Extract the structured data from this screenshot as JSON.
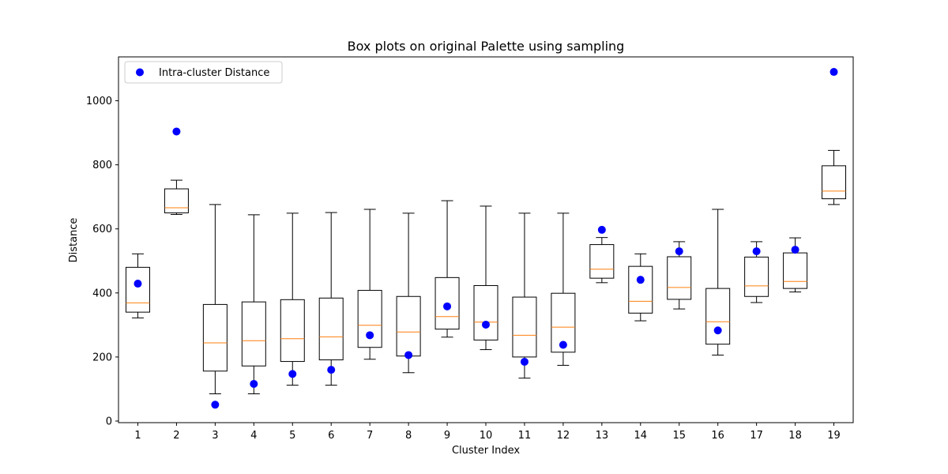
{
  "chart_data": {
    "type": "box",
    "title": "Box plots on original Palette using sampling",
    "xlabel": "Cluster Index",
    "ylabel": "Distance",
    "xlim": [
      0.5,
      19.5
    ],
    "ylim": [
      -5,
      1137
    ],
    "yticks": [
      0,
      200,
      400,
      600,
      800,
      1000
    ],
    "categories": [
      "1",
      "2",
      "3",
      "4",
      "5",
      "6",
      "7",
      "8",
      "9",
      "10",
      "11",
      "12",
      "13",
      "14",
      "15",
      "16",
      "17",
      "18",
      "19"
    ],
    "boxes": [
      {
        "whisker_low": 322,
        "q1": 340,
        "median": 369,
        "q3": 480,
        "whisker_high": 522
      },
      {
        "whisker_low": 645,
        "q1": 650,
        "median": 666,
        "q3": 725,
        "whisker_high": 752
      },
      {
        "whisker_low": 85,
        "q1": 156,
        "median": 244,
        "q3": 364,
        "whisker_high": 676
      },
      {
        "whisker_low": 85,
        "q1": 172,
        "median": 251,
        "q3": 372,
        "whisker_high": 644
      },
      {
        "whisker_low": 112,
        "q1": 186,
        "median": 257,
        "q3": 379,
        "whisker_high": 649
      },
      {
        "whisker_low": 112,
        "q1": 191,
        "median": 263,
        "q3": 384,
        "whisker_high": 651
      },
      {
        "whisker_low": 193,
        "q1": 230,
        "median": 299,
        "q3": 408,
        "whisker_high": 661
      },
      {
        "whisker_low": 151,
        "q1": 203,
        "median": 278,
        "q3": 389,
        "whisker_high": 649
      },
      {
        "whisker_low": 262,
        "q1": 287,
        "median": 326,
        "q3": 448,
        "whisker_high": 688
      },
      {
        "whisker_low": 223,
        "q1": 253,
        "median": 309,
        "q3": 423,
        "whisker_high": 671
      },
      {
        "whisker_low": 134,
        "q1": 200,
        "median": 268,
        "q3": 387,
        "whisker_high": 649
      },
      {
        "whisker_low": 174,
        "q1": 215,
        "median": 293,
        "q3": 399,
        "whisker_high": 649
      },
      {
        "whisker_low": 432,
        "q1": 446,
        "median": 474,
        "q3": 551,
        "whisker_high": 573
      },
      {
        "whisker_low": 313,
        "q1": 337,
        "median": 374,
        "q3": 483,
        "whisker_high": 522
      },
      {
        "whisker_low": 350,
        "q1": 380,
        "median": 417,
        "q3": 513,
        "whisker_high": 560
      },
      {
        "whisker_low": 206,
        "q1": 240,
        "median": 310,
        "q3": 414,
        "whisker_high": 661
      },
      {
        "whisker_low": 370,
        "q1": 389,
        "median": 422,
        "q3": 512,
        "whisker_high": 560
      },
      {
        "whisker_low": 403,
        "q1": 414,
        "median": 436,
        "q3": 525,
        "whisker_high": 572
      },
      {
        "whisker_low": 676,
        "q1": 694,
        "median": 718,
        "q3": 797,
        "whisker_high": 845
      }
    ],
    "series": [
      {
        "name": "Intra-cluster Distance",
        "type": "scatter",
        "values": [
          429,
          904,
          51,
          116,
          147,
          160,
          268,
          206,
          358,
          301,
          185,
          238,
          597,
          441,
          530,
          283,
          530,
          535,
          1090
        ]
      }
    ],
    "colors": {
      "box": "#000000",
      "median": "#ff7f0e",
      "points": "#0000ff"
    },
    "legend_position": "upper-left",
    "grid": false
  }
}
